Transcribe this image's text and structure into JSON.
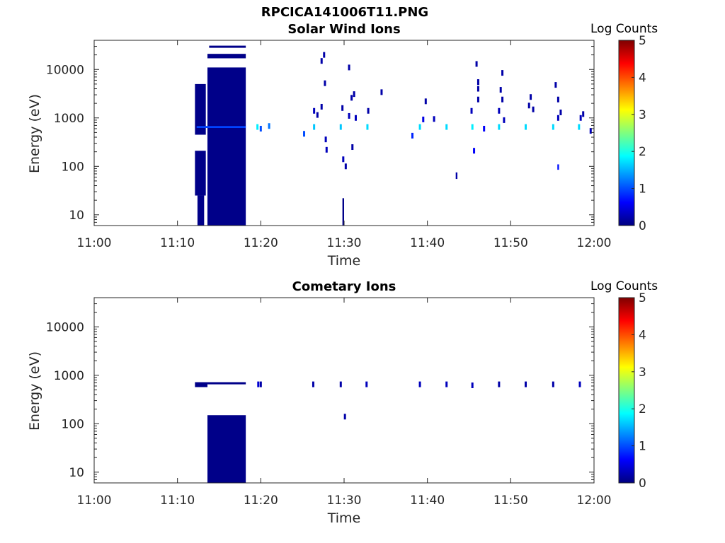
{
  "figure": {
    "title": "RPCICA141006T11.PNG"
  },
  "colors": {
    "colormap": [
      "#00007f",
      "#0000ff",
      "#007fff",
      "#00ffff",
      "#7fff7f",
      "#ffff00",
      "#ff7f00",
      "#ff0000",
      "#7f0000"
    ],
    "axis": "#262626"
  },
  "chart_data": [
    {
      "type": "heatmap",
      "title": "Solar Wind Ions",
      "xlabel": "Time",
      "ylabel": "Energy (eV)",
      "x_range_minutes": [
        0,
        60
      ],
      "x_ticks": [
        "11:00",
        "11:10",
        "11:20",
        "11:30",
        "11:40",
        "11:50",
        "12:00"
      ],
      "y_scale": "log",
      "y_range": [
        6,
        40000
      ],
      "y_ticks": [
        "10",
        "100",
        "1000",
        "10000"
      ],
      "colorbar": {
        "label": "Log Counts",
        "range": [
          0,
          5
        ],
        "ticks": [
          "0",
          "1",
          "2",
          "3",
          "4",
          "5"
        ]
      },
      "blocks": [
        {
          "t": [
            12.1,
            13.4
          ],
          "e": [
            450,
            5000
          ],
          "v": 0.05
        },
        {
          "t": [
            12.1,
            13.4
          ],
          "e": [
            25,
            210
          ],
          "v": 0.05
        },
        {
          "t": [
            12.4,
            13.2
          ],
          "e": [
            6,
            25
          ],
          "v": 0.05
        },
        {
          "t": [
            13.6,
            18.2
          ],
          "e": [
            6,
            11000
          ],
          "v": 0.05
        },
        {
          "t": [
            13.6,
            18.2
          ],
          "e": [
            17000,
            21000
          ],
          "v": 0.05
        },
        {
          "t": [
            13.8,
            18.2
          ],
          "e": [
            28000,
            31000
          ],
          "v": 0.05
        },
        {
          "t": [
            12.3,
            18.2
          ],
          "e": [
            620,
            680
          ],
          "v": 0.95
        },
        {
          "t": [
            29.8,
            30.0
          ],
          "e": [
            6,
            22
          ],
          "v": 0.05
        },
        {
          "t": [
            43.4,
            43.6
          ],
          "e": [
            55,
            75
          ],
          "v": 0.2
        },
        {
          "t": [
            55.6,
            55.8
          ],
          "e": [
            85,
            110
          ],
          "v": 0.7
        }
      ],
      "points": [
        {
          "t": 19.6,
          "e": 650,
          "v": 1.8
        },
        {
          "t": 20.0,
          "e": 600,
          "v": 1.0
        },
        {
          "t": 21.0,
          "e": 680,
          "v": 1.2
        },
        {
          "t": 25.2,
          "e": 470,
          "v": 1.0
        },
        {
          "t": 26.4,
          "e": 650,
          "v": 1.6
        },
        {
          "t": 26.4,
          "e": 1400,
          "v": 0.3
        },
        {
          "t": 26.8,
          "e": 1150,
          "v": 0.2
        },
        {
          "t": 27.3,
          "e": 1700,
          "v": 0.2
        },
        {
          "t": 27.3,
          "e": 15000,
          "v": 0.2
        },
        {
          "t": 27.6,
          "e": 20000,
          "v": 0.2
        },
        {
          "t": 27.7,
          "e": 5200,
          "v": 0.2
        },
        {
          "t": 27.8,
          "e": 360,
          "v": 0.3
        },
        {
          "t": 27.9,
          "e": 220,
          "v": 0.3
        },
        {
          "t": 29.6,
          "e": 650,
          "v": 1.6
        },
        {
          "t": 29.8,
          "e": 1600,
          "v": 0.2
        },
        {
          "t": 29.9,
          "e": 140,
          "v": 0.3
        },
        {
          "t": 30.2,
          "e": 100,
          "v": 0.2
        },
        {
          "t": 30.6,
          "e": 1100,
          "v": 0.3
        },
        {
          "t": 30.6,
          "e": 11000,
          "v": 0.2
        },
        {
          "t": 30.9,
          "e": 2600,
          "v": 0.2
        },
        {
          "t": 31.0,
          "e": 250,
          "v": 0.2
        },
        {
          "t": 31.2,
          "e": 3100,
          "v": 0.2
        },
        {
          "t": 31.4,
          "e": 1000,
          "v": 0.3
        },
        {
          "t": 32.8,
          "e": 650,
          "v": 1.7
        },
        {
          "t": 32.9,
          "e": 1400,
          "v": 0.2
        },
        {
          "t": 34.5,
          "e": 3400,
          "v": 0.2
        },
        {
          "t": 38.2,
          "e": 430,
          "v": 0.8
        },
        {
          "t": 39.1,
          "e": 650,
          "v": 1.7
        },
        {
          "t": 39.5,
          "e": 930,
          "v": 0.5
        },
        {
          "t": 39.8,
          "e": 2200,
          "v": 0.2
        },
        {
          "t": 40.8,
          "e": 950,
          "v": 0.3
        },
        {
          "t": 42.3,
          "e": 650,
          "v": 1.7
        },
        {
          "t": 45.4,
          "e": 650,
          "v": 1.8
        },
        {
          "t": 45.3,
          "e": 1400,
          "v": 0.3
        },
        {
          "t": 45.6,
          "e": 210,
          "v": 0.6
        },
        {
          "t": 45.9,
          "e": 13000,
          "v": 0.2
        },
        {
          "t": 46.1,
          "e": 5500,
          "v": 0.2
        },
        {
          "t": 46.1,
          "e": 4000,
          "v": 0.2
        },
        {
          "t": 46.1,
          "e": 2400,
          "v": 0.2
        },
        {
          "t": 46.8,
          "e": 600,
          "v": 0.6
        },
        {
          "t": 48.6,
          "e": 650,
          "v": 1.7
        },
        {
          "t": 48.6,
          "e": 1400,
          "v": 0.3
        },
        {
          "t": 48.8,
          "e": 3800,
          "v": 0.2
        },
        {
          "t": 49.0,
          "e": 8500,
          "v": 0.2
        },
        {
          "t": 49.0,
          "e": 2400,
          "v": 0.2
        },
        {
          "t": 49.2,
          "e": 900,
          "v": 0.3
        },
        {
          "t": 51.8,
          "e": 650,
          "v": 1.7
        },
        {
          "t": 52.2,
          "e": 1800,
          "v": 0.2
        },
        {
          "t": 52.4,
          "e": 2700,
          "v": 0.2
        },
        {
          "t": 52.7,
          "e": 1500,
          "v": 0.2
        },
        {
          "t": 55.1,
          "e": 650,
          "v": 1.7
        },
        {
          "t": 55.4,
          "e": 4800,
          "v": 0.2
        },
        {
          "t": 55.7,
          "e": 2400,
          "v": 0.2
        },
        {
          "t": 55.7,
          "e": 1000,
          "v": 0.3
        },
        {
          "t": 56.0,
          "e": 1300,
          "v": 0.2
        },
        {
          "t": 58.2,
          "e": 650,
          "v": 1.7
        },
        {
          "t": 58.4,
          "e": 1000,
          "v": 0.3
        },
        {
          "t": 58.7,
          "e": 1200,
          "v": 0.2
        },
        {
          "t": 59.6,
          "e": 540,
          "v": 0.3
        }
      ]
    },
    {
      "type": "heatmap",
      "title": "Cometary Ions",
      "xlabel": "Time",
      "ylabel": "Energy (eV)",
      "x_range_minutes": [
        0,
        60
      ],
      "x_ticks": [
        "11:00",
        "11:10",
        "11:20",
        "11:30",
        "11:40",
        "11:50",
        "12:00"
      ],
      "y_scale": "log",
      "y_range": [
        6,
        40000
      ],
      "y_ticks": [
        "10",
        "100",
        "1000",
        "10000"
      ],
      "colorbar": {
        "label": "Log Counts",
        "range": [
          0,
          5
        ],
        "ticks": [
          "0",
          "1",
          "2",
          "3",
          "4",
          "5"
        ]
      },
      "blocks": [
        {
          "t": [
            12.1,
            13.6
          ],
          "e": [
            570,
            720
          ],
          "v": 0.05
        },
        {
          "t": [
            13.6,
            18.2
          ],
          "e": [
            650,
            720
          ],
          "v": 0.05
        },
        {
          "t": [
            13.6,
            18.2
          ],
          "e": [
            6,
            150
          ],
          "v": 0.05
        }
      ],
      "points": [
        {
          "t": 19.7,
          "e": 650,
          "v": 0.4
        },
        {
          "t": 20.0,
          "e": 650,
          "v": 0.2
        },
        {
          "t": 26.3,
          "e": 650,
          "v": 0.2
        },
        {
          "t": 29.6,
          "e": 650,
          "v": 0.2
        },
        {
          "t": 30.1,
          "e": 140,
          "v": 0.2
        },
        {
          "t": 32.7,
          "e": 650,
          "v": 0.3
        },
        {
          "t": 39.1,
          "e": 650,
          "v": 0.3
        },
        {
          "t": 42.3,
          "e": 650,
          "v": 0.3
        },
        {
          "t": 45.4,
          "e": 620,
          "v": 0.3
        },
        {
          "t": 48.6,
          "e": 650,
          "v": 0.2
        },
        {
          "t": 51.8,
          "e": 650,
          "v": 0.2
        },
        {
          "t": 55.1,
          "e": 650,
          "v": 0.2
        },
        {
          "t": 58.3,
          "e": 650,
          "v": 0.3
        }
      ]
    }
  ]
}
